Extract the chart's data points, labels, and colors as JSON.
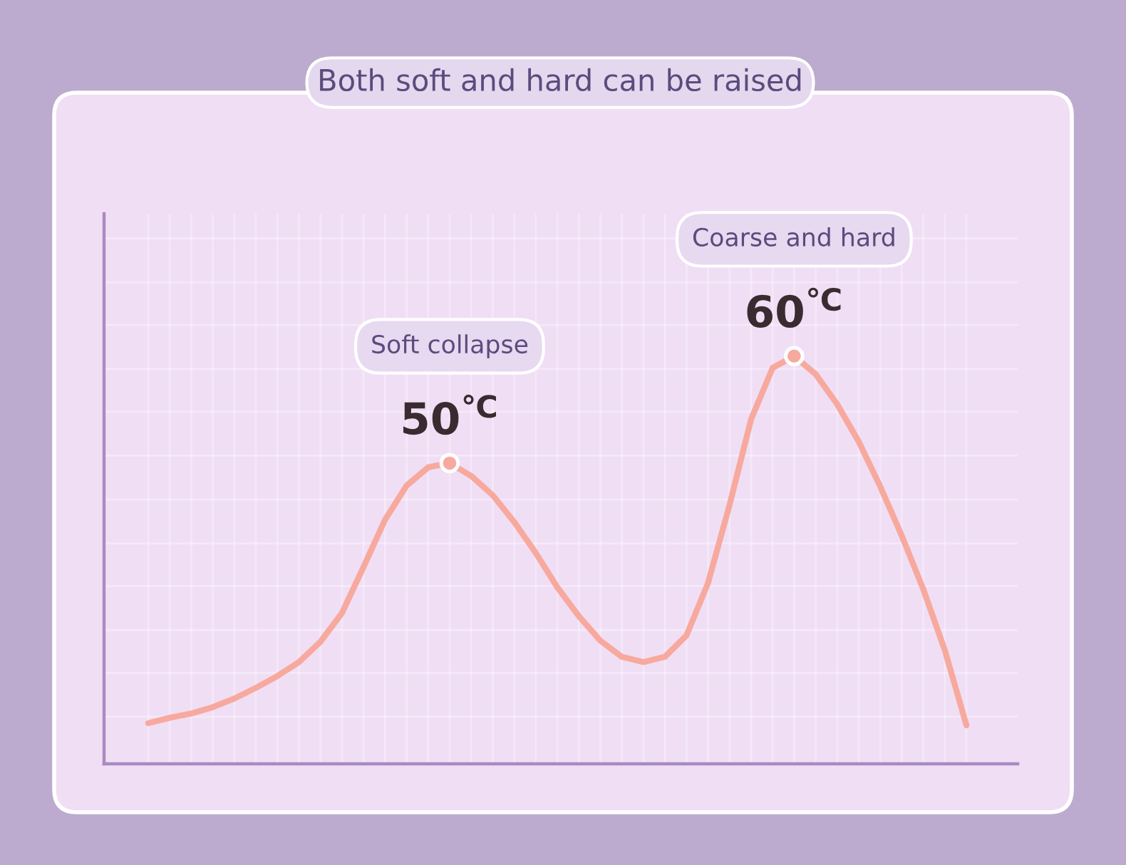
{
  "chart_data": {
    "type": "line",
    "title": "Both soft and hard can be raised",
    "categories": [
      null,
      null,
      null,
      null,
      null,
      null,
      null,
      null,
      null,
      null,
      null,
      null,
      null,
      null,
      null,
      null,
      null,
      null,
      null,
      null,
      null,
      null,
      null,
      null,
      null,
      null,
      null,
      null,
      null,
      null,
      null,
      null,
      null,
      null,
      null,
      null,
      null,
      null,
      null
    ],
    "values": [
      25.7,
      26.2,
      26.6,
      27.2,
      28.0,
      29.0,
      30.1,
      31.4,
      33.3,
      36.0,
      40.3,
      44.7,
      47.9,
      49.6,
      50,
      48.8,
      47.0,
      44.5,
      41.6,
      38.4,
      35.7,
      33.4,
      31.9,
      31.4,
      31.9,
      33.9,
      38.8,
      46.1,
      54.1,
      58.9,
      60,
      58.3,
      55.5,
      52.0,
      47.8,
      43.2,
      38.2,
      32.5,
      25.5
    ],
    "color": "#f7a99e",
    "value_labels": [
      null,
      null,
      null,
      null,
      null,
      null,
      null,
      null,
      null,
      null,
      null,
      null,
      null,
      null,
      "50$^{℃}$",
      null,
      null,
      null,
      null,
      null,
      null,
      null,
      null,
      null,
      null,
      null,
      null,
      null,
      null,
      null,
      "60$^{℃}$",
      null,
      null,
      null,
      null,
      null,
      null,
      null,
      null
    ],
    "annotations": [
      "Soft collapse",
      "Coarse and hard"
    ],
    "ylim": [
      21.9,
      73.3
    ],
    "yticks": [
      26.3,
      30.4,
      34.4,
      38.5,
      42.5,
      46.6,
      50.7,
      54.8,
      58.8,
      62.9,
      66.9,
      71.0
    ],
    "grid": true,
    "tick_labels": false
  }
}
